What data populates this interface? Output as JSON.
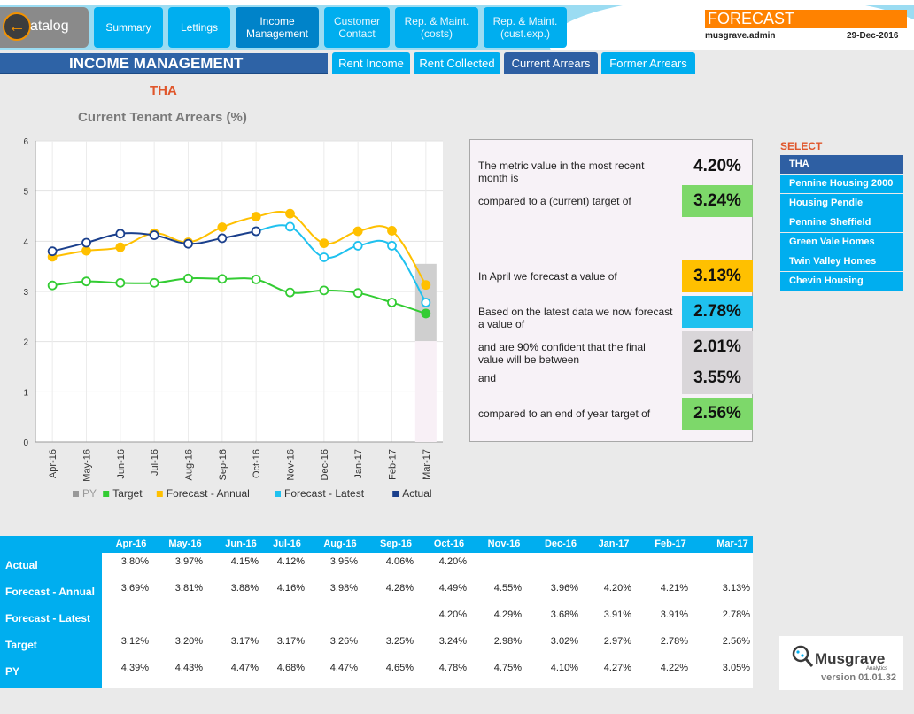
{
  "header": {
    "back_label": "atalog",
    "nav": [
      "Summary",
      "Lettings",
      "Income\nManagement",
      "Customer\nContact",
      "Rep. & Maint.\n(costs)",
      "Rep. & Maint.\n(cust.exp.)"
    ],
    "forecast_title": "FORECAST",
    "user": "musgrave.admin",
    "date": "29-Dec-2016"
  },
  "section": {
    "title": "INCOME MANAGEMENT",
    "tabs": [
      "Rent Income",
      "Rent Collected",
      "Current Arrears",
      "Former Arrears"
    ],
    "active_tab": "Current Arrears"
  },
  "org_title": "THA",
  "chart_title": "Current Tenant Arrears (%)",
  "chart_data": {
    "type": "line",
    "title": "Current Tenant Arrears (%)",
    "categories": [
      "Apr-16",
      "May-16",
      "Jun-16",
      "Jul-16",
      "Aug-16",
      "Sep-16",
      "Oct-16",
      "Nov-16",
      "Dec-16",
      "Jan-17",
      "Feb-17",
      "Mar-17"
    ],
    "ylim": [
      0,
      6
    ],
    "yticks": [
      0,
      1,
      2,
      3,
      4,
      5,
      6
    ],
    "grid": true,
    "legend_position": "bottom",
    "legend": [
      "PY",
      "Target",
      "Forecast - Annual",
      "Forecast - Latest",
      "Actual"
    ],
    "confidence_band": {
      "category": "Mar-17",
      "low": 2.01,
      "high": 3.55
    },
    "series": [
      {
        "name": "Target",
        "color": "#33cc33",
        "values": [
          3.12,
          3.2,
          3.17,
          3.17,
          3.26,
          3.25,
          3.24,
          2.98,
          3.02,
          2.97,
          2.78,
          2.56
        ]
      },
      {
        "name": "Forecast - Annual",
        "color": "#ffc000",
        "values": [
          3.69,
          3.81,
          3.88,
          4.16,
          3.98,
          4.28,
          4.49,
          4.55,
          3.96,
          4.2,
          4.21,
          3.13
        ]
      },
      {
        "name": "Forecast - Latest",
        "color": "#1fc1ef",
        "values": [
          null,
          null,
          null,
          null,
          null,
          null,
          4.2,
          4.29,
          3.68,
          3.91,
          3.91,
          2.78
        ]
      },
      {
        "name": "Actual",
        "color": "#1a3f8c",
        "values": [
          3.8,
          3.97,
          4.15,
          4.12,
          3.95,
          4.06,
          4.2,
          null,
          null,
          null,
          null,
          null
        ]
      }
    ]
  },
  "info": {
    "recent_text": "The metric value in the most recent month is",
    "recent_value": "4.20%",
    "target_text": "compared to a (current) target of",
    "target_value": "3.24%",
    "april_text": "In April we forecast a value of",
    "april_value": "3.13%",
    "latest_text": "Based on the latest data we now forecast a value of",
    "latest_value": "2.78%",
    "confident_text": "and are 90% confident that the final value will be between",
    "low_value": "2.01%",
    "and_text": "and",
    "high_value": "3.55%",
    "eoy_text": "compared to an end of year target of",
    "eoy_value": "2.56%",
    "colors": {
      "green": "#7dd86a",
      "orange": "#ffc000",
      "cyan": "#1fc1ef",
      "grey": "#d9d6d9"
    }
  },
  "select": {
    "label": "SELECT",
    "items": [
      "THA",
      "Pennine Housing 2000",
      "Housing Pendle",
      "Pennine Sheffield",
      "Green Vale Homes",
      "Twin Valley Homes",
      "Chevin Housing"
    ],
    "active": "THA"
  },
  "table": {
    "columns": [
      "Apr-16",
      "May-16",
      "Jun-16",
      "Jul-16",
      "Aug-16",
      "Sep-16",
      "Oct-16",
      "Nov-16",
      "Dec-16",
      "Jan-17",
      "Feb-17",
      "Mar-17"
    ],
    "rows": [
      {
        "label": "Actual",
        "values": [
          "3.80%",
          "3.97%",
          "4.15%",
          "4.12%",
          "3.95%",
          "4.06%",
          "4.20%",
          "",
          "",
          "",
          "",
          ""
        ]
      },
      {
        "label": "Forecast - Annual",
        "values": [
          "3.69%",
          "3.81%",
          "3.88%",
          "4.16%",
          "3.98%",
          "4.28%",
          "4.49%",
          "4.55%",
          "3.96%",
          "4.20%",
          "4.21%",
          "3.13%"
        ]
      },
      {
        "label": "Forecast - Latest",
        "values": [
          "",
          "",
          "",
          "",
          "",
          "",
          "4.20%",
          "4.29%",
          "3.68%",
          "3.91%",
          "3.91%",
          "2.78%"
        ]
      },
      {
        "label": "Target",
        "values": [
          "3.12%",
          "3.20%",
          "3.17%",
          "3.17%",
          "3.26%",
          "3.25%",
          "3.24%",
          "2.98%",
          "3.02%",
          "2.97%",
          "2.78%",
          "2.56%"
        ]
      },
      {
        "label": "PY",
        "values": [
          "4.39%",
          "4.43%",
          "4.47%",
          "4.68%",
          "4.47%",
          "4.65%",
          "4.78%",
          "4.75%",
          "4.10%",
          "4.27%",
          "4.22%",
          "3.05%"
        ]
      }
    ]
  },
  "logo": {
    "name": "Musgrave",
    "sub": "Analytics",
    "version": "version 01.01.32"
  }
}
